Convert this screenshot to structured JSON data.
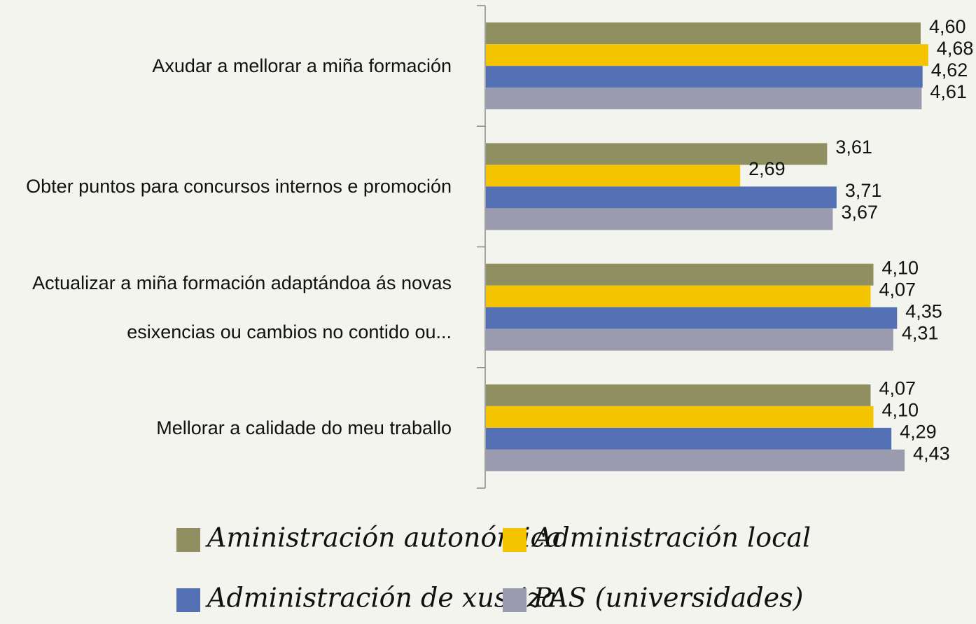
{
  "chart_data": {
    "type": "hbar",
    "categories": [
      "Axudar a mellorar a miña formación",
      "Obter puntos para concursos internos e promoción",
      "Actualizar a miña formación adaptándoa ás novas esixencias ou cambios no contido ou...",
      "Mellorar a calidade do meu traballo"
    ],
    "series": [
      {
        "name": "Aministración autonómica",
        "color": "#8f8f62",
        "values": [
          4.6,
          3.61,
          4.1,
          4.07
        ],
        "value_labels": [
          "4,60",
          "3,61",
          "4,10",
          "4,07"
        ]
      },
      {
        "name": "Administración local",
        "color": "#f5c400",
        "values": [
          4.68,
          2.69,
          4.07,
          4.1
        ],
        "value_labels": [
          "4,68",
          "2,69",
          "4,07",
          "4,10"
        ]
      },
      {
        "name": "Administración de xustiza",
        "color": "#5470b4",
        "values": [
          4.62,
          3.71,
          4.35,
          4.29
        ],
        "value_labels": [
          "4,62",
          "3,71",
          "4,35",
          "4,29"
        ]
      },
      {
        "name": "PAS (universidades)",
        "color": "#9b9bb0",
        "values": [
          4.61,
          3.67,
          4.31,
          4.43
        ],
        "value_labels": [
          "4,61",
          "3,67",
          "4,31",
          "4,43"
        ]
      }
    ],
    "xlim": [
      0,
      5
    ]
  }
}
